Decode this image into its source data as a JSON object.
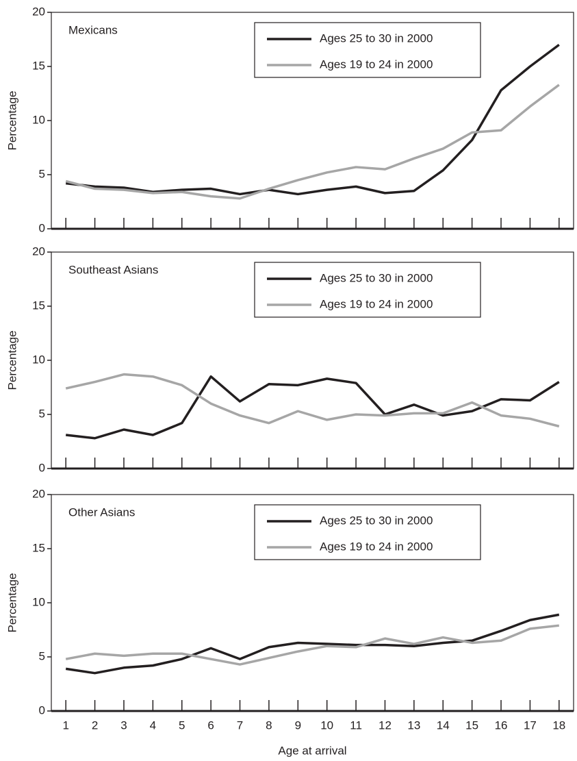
{
  "chart_data": [
    {
      "type": "line",
      "title": "Mexicans",
      "ylabel": "Percentage",
      "x": [
        1,
        2,
        3,
        4,
        5,
        6,
        7,
        8,
        9,
        10,
        11,
        12,
        13,
        14,
        15,
        16,
        17,
        18
      ],
      "series": [
        {
          "name": "Ages 25 to 30 in 2000",
          "color": "#231f20",
          "values": [
            4.2,
            3.9,
            3.8,
            3.4,
            3.6,
            3.7,
            3.2,
            3.6,
            3.2,
            3.6,
            3.9,
            3.3,
            3.5,
            5.4,
            8.2,
            12.8,
            15.0,
            17.0
          ]
        },
        {
          "name": "Ages 19 to 24 in 2000",
          "color": "#a6a6a6",
          "values": [
            4.4,
            3.7,
            3.6,
            3.3,
            3.4,
            3.0,
            2.8,
            3.7,
            4.5,
            5.2,
            5.7,
            5.5,
            6.5,
            7.4,
            8.9,
            9.1,
            11.3,
            13.3
          ]
        }
      ],
      "xlim": [
        0.5,
        18.5
      ],
      "ylim": [
        0,
        20
      ],
      "yticks": [
        0,
        5,
        10,
        15,
        20
      ]
    },
    {
      "type": "line",
      "title": "Southeast Asians",
      "ylabel": "Percentage",
      "x": [
        1,
        2,
        3,
        4,
        5,
        6,
        7,
        8,
        9,
        10,
        11,
        12,
        13,
        14,
        15,
        16,
        17,
        18
      ],
      "series": [
        {
          "name": "Ages 25 to 30 in 2000",
          "color": "#231f20",
          "values": [
            3.1,
            2.8,
            3.6,
            3.1,
            4.2,
            8.5,
            6.2,
            7.8,
            7.7,
            8.3,
            7.9,
            5.0,
            5.9,
            4.9,
            5.3,
            6.4,
            6.3,
            8.0
          ]
        },
        {
          "name": "Ages 19 to 24 in 2000",
          "color": "#a6a6a6",
          "values": [
            7.4,
            8.0,
            8.7,
            8.5,
            7.7,
            6.0,
            4.9,
            4.2,
            5.3,
            4.5,
            5.0,
            4.9,
            5.1,
            5.1,
            6.1,
            4.9,
            4.6,
            3.9
          ]
        }
      ],
      "xlim": [
        0.5,
        18.5
      ],
      "ylim": [
        0,
        20
      ],
      "yticks": [
        0,
        5,
        10,
        15,
        20
      ]
    },
    {
      "type": "line",
      "title": "Other Asians",
      "ylabel": "Percentage",
      "xlabel": "Age at arrival",
      "x": [
        1,
        2,
        3,
        4,
        5,
        6,
        7,
        8,
        9,
        10,
        11,
        12,
        13,
        14,
        15,
        16,
        17,
        18
      ],
      "series": [
        {
          "name": "Ages 25 to 30 in 2000",
          "color": "#231f20",
          "values": [
            3.9,
            3.5,
            4.0,
            4.2,
            4.8,
            5.8,
            4.8,
            5.9,
            6.3,
            6.2,
            6.1,
            6.1,
            6.0,
            6.3,
            6.5,
            7.4,
            8.4,
            8.9
          ]
        },
        {
          "name": "Ages 19 to 24 in 2000",
          "color": "#a6a6a6",
          "values": [
            4.8,
            5.3,
            5.1,
            5.3,
            5.3,
            4.8,
            4.3,
            4.9,
            5.5,
            6.0,
            5.9,
            6.7,
            6.2,
            6.8,
            6.3,
            6.5,
            7.6,
            7.9
          ]
        }
      ],
      "xlim": [
        0.5,
        18.5
      ],
      "ylim": [
        0,
        20
      ],
      "yticks": [
        0,
        5,
        10,
        15,
        20
      ],
      "xticks": [
        1,
        2,
        3,
        4,
        5,
        6,
        7,
        8,
        9,
        10,
        11,
        12,
        13,
        14,
        15,
        16,
        17,
        18
      ]
    }
  ]
}
